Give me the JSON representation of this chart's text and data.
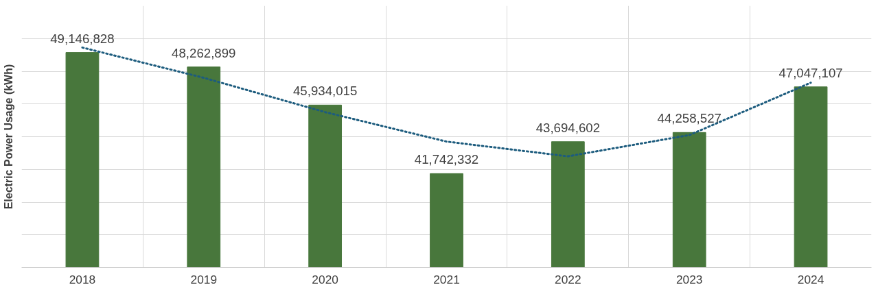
{
  "chart_data": {
    "type": "bar",
    "ylabel": "Electric Power Usage (kWh)",
    "categories": [
      "2018",
      "2019",
      "2020",
      "2021",
      "2022",
      "2023",
      "2024"
    ],
    "series": [
      {
        "color": "#48773c",
        "values": [
          49146828,
          48262899,
          45934015,
          41742332,
          43694602,
          44258527,
          47047107
        ],
        "value_labels": [
          "49,146,828",
          "48,262,899",
          "45,934,015",
          "41,742,332",
          "43,694,602",
          "44,258,527",
          "47,047,107"
        ]
      },
      {
        "type": "line",
        "color": "#1d5c7e",
        "line_style": "dotted",
        "values": [
          49450000,
          47600000,
          45500000,
          43700000,
          42800000,
          44100000,
          47300000
        ]
      }
    ],
    "ylim": [
      36000000,
      52000000
    ],
    "yticks": [
      {
        "value": 36000000,
        "label": null
      },
      {
        "value": 38000000,
        "label": null
      },
      {
        "value": 40000000,
        "label": null
      },
      {
        "value": 42000000,
        "label": null
      },
      {
        "value": 44000000,
        "label": null
      },
      {
        "value": 46000000,
        "label": null
      },
      {
        "value": 48000000,
        "label": null
      },
      {
        "value": 50000000,
        "label": null
      }
    ],
    "tick_labels": "x",
    "grid": true
  }
}
